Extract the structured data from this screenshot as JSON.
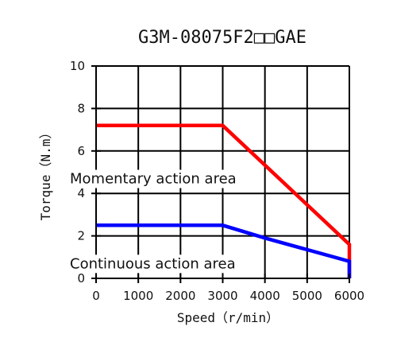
{
  "chart_data": {
    "type": "line",
    "title": "G3M-08075F2□□GAE",
    "xlabel": "Speed（r/min）",
    "ylabel": "Torque（N.m）",
    "xlim": [
      0,
      6000
    ],
    "ylim": [
      0,
      10
    ],
    "x_ticks": [
      0,
      1000,
      2000,
      3000,
      4000,
      5000,
      6000
    ],
    "y_ticks": [
      0,
      2,
      4,
      6,
      8,
      10
    ],
    "grid": true,
    "series": [
      {
        "color": "#ff0000",
        "points": [
          [
            0,
            7.2
          ],
          [
            3000,
            7.2
          ],
          [
            6000,
            1.6
          ],
          [
            6000,
            0
          ]
        ]
      },
      {
        "color": "#0000ff",
        "points": [
          [
            0,
            2.5
          ],
          [
            3000,
            2.5
          ],
          [
            4000,
            1.9
          ],
          [
            6000,
            0.8
          ],
          [
            6000,
            0
          ]
        ]
      }
    ],
    "annotations": [
      {
        "text": "Momentary action area",
        "x": 0,
        "y": 4.7
      },
      {
        "text": "Continuous action area",
        "x": 0,
        "y": 0.7
      }
    ]
  }
}
